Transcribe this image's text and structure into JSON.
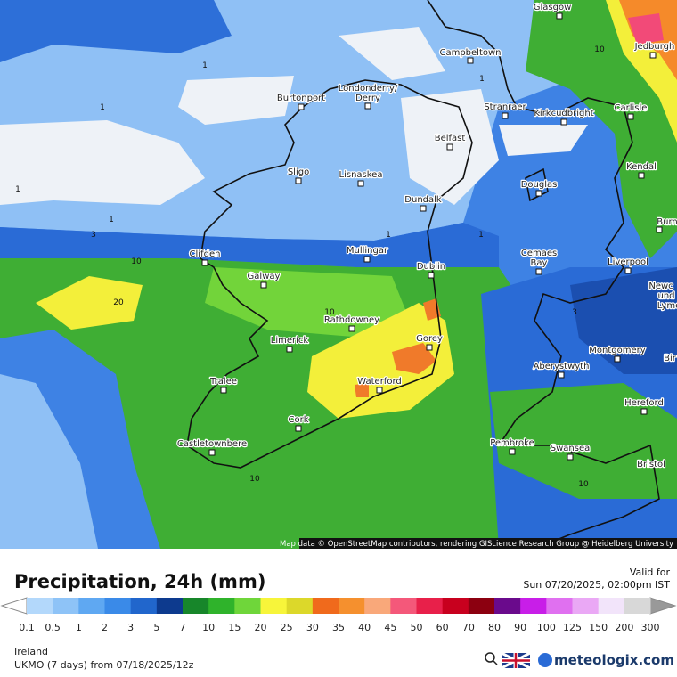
{
  "header": {
    "title": "Precipitation, 24h (mm)",
    "valid_label": "Valid for",
    "valid_time": "Sun 07/20/2025, 02:00pm IST"
  },
  "map": {
    "attribution": "Map data © OpenStreetMap contributors, rendering GIScience Research Group @ Heidelberg University",
    "cities": [
      "Glasgow",
      "Campbeltown",
      "Jedburgh",
      "Burtonport",
      "Londonderry/",
      "Derry",
      "Stranraer",
      "Kirkcudbright",
      "Carlisle",
      "Belfast",
      "Sligo",
      "Lisnaskea",
      "Douglas",
      "Kendal",
      "Dundalk",
      "Burn",
      "Mullingar",
      "Cemaes",
      "Bay",
      "Liverpool",
      "Clifden",
      "Galway",
      "Dublin",
      "Newc",
      "und",
      "Lyme",
      "Rathdowney",
      "Limerick",
      "Gorey",
      "Montgomery",
      "Aberystwyth",
      "Bir",
      "Tralee",
      "Waterford",
      "Hereford",
      "Cork",
      "Pembroke",
      "Swansea",
      "Castletownbere",
      "Bristol"
    ],
    "contour_labels": [
      1,
      1,
      1,
      1,
      3,
      1,
      1,
      10,
      20,
      10,
      3,
      10,
      10,
      10,
      1
    ]
  },
  "legend": {
    "values": [
      0.1,
      0.5,
      1,
      2,
      3,
      5,
      7,
      10,
      15,
      20,
      25,
      30,
      35,
      40,
      45,
      50,
      60,
      70,
      80,
      90,
      100,
      125,
      150,
      200,
      300
    ],
    "colors": [
      "#b3d8fb",
      "#8ec3f7",
      "#5fa8f2",
      "#3a8ae8",
      "#2166cc",
      "#0d3a8e",
      "#17862a",
      "#2fb32b",
      "#6fd63a",
      "#f7f53a",
      "#dcd82a",
      "#f06a1c",
      "#f5902e",
      "#f9a87a",
      "#f4587a",
      "#e8204a",
      "#c8001e",
      "#8c0010",
      "#6a0a8c",
      "#c81ee8",
      "#e070f0",
      "#eaa8f5",
      "#f2e4fa",
      "#d8d8d8"
    ]
  },
  "footer": {
    "region": "Ireland",
    "model": "UKMO (7 days) from 07/18/2025/12z",
    "brand": "meteologix.com"
  }
}
